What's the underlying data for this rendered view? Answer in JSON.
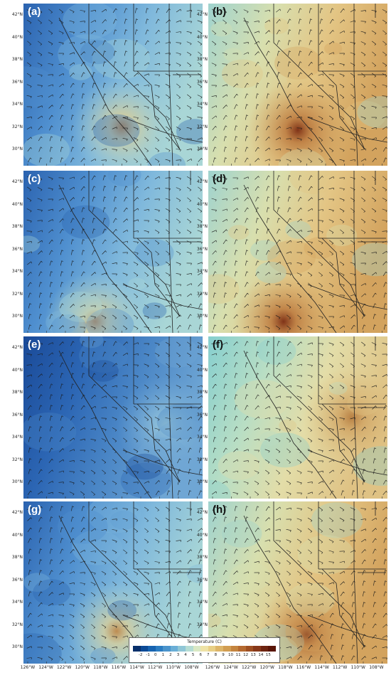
{
  "panels": [
    {
      "label": "(a)",
      "theme": "cool",
      "hotspot": [
        0.55,
        0.76
      ],
      "variant": 1
    },
    {
      "label": "(b)",
      "theme": "warm",
      "hotspot": [
        0.5,
        0.78
      ],
      "variant": 2
    },
    {
      "label": "(c)",
      "theme": "cool",
      "hotspot": [
        0.4,
        0.93
      ],
      "variant": 3
    },
    {
      "label": "(d)",
      "theme": "warm",
      "hotspot": [
        0.42,
        0.93
      ],
      "variant": 4
    },
    {
      "label": "(e)",
      "theme": "cool-dark",
      "hotspot": [
        0.8,
        0.55
      ],
      "variant": 5
    },
    {
      "label": "(f)",
      "theme": "warm-light",
      "hotspot": [
        0.8,
        0.5
      ],
      "variant": 6
    },
    {
      "label": "(g)",
      "theme": "cool",
      "hotspot": [
        0.52,
        0.8
      ],
      "variant": 7
    },
    {
      "label": "(h)",
      "theme": "warm",
      "hotspot": [
        0.55,
        0.82
      ],
      "variant": 8
    }
  ],
  "lat_labels": [
    "42°N",
    "40°N",
    "38°N",
    "36°N",
    "34°N",
    "32°N",
    "30°N"
  ],
  "lon_labels": [
    "126°W",
    "124°W",
    "122°W",
    "120°W",
    "118°W",
    "116°W",
    "114°W",
    "112°W",
    "110°W",
    "108°W"
  ],
  "colorbar": {
    "title": "Temperature (C)",
    "ticks": [
      "-2",
      "-1",
      "0",
      "1",
      "2",
      "3",
      "4",
      "5",
      "6",
      "7",
      "8",
      "9",
      "10",
      "11",
      "12",
      "13",
      "14",
      "15"
    ],
    "colors": [
      "#08306b",
      "#0b4a96",
      "#1663b0",
      "#2b7cc1",
      "#4a94cc",
      "#6aaed6",
      "#8fc6d6",
      "#b5dcd3",
      "#d9e8c4",
      "#eee2a6",
      "#e8cf86",
      "#ddb569",
      "#d19d52",
      "#c4843f",
      "#b56a30",
      "#9e4f22",
      "#873819",
      "#6e2410",
      "#5a1508"
    ]
  }
}
